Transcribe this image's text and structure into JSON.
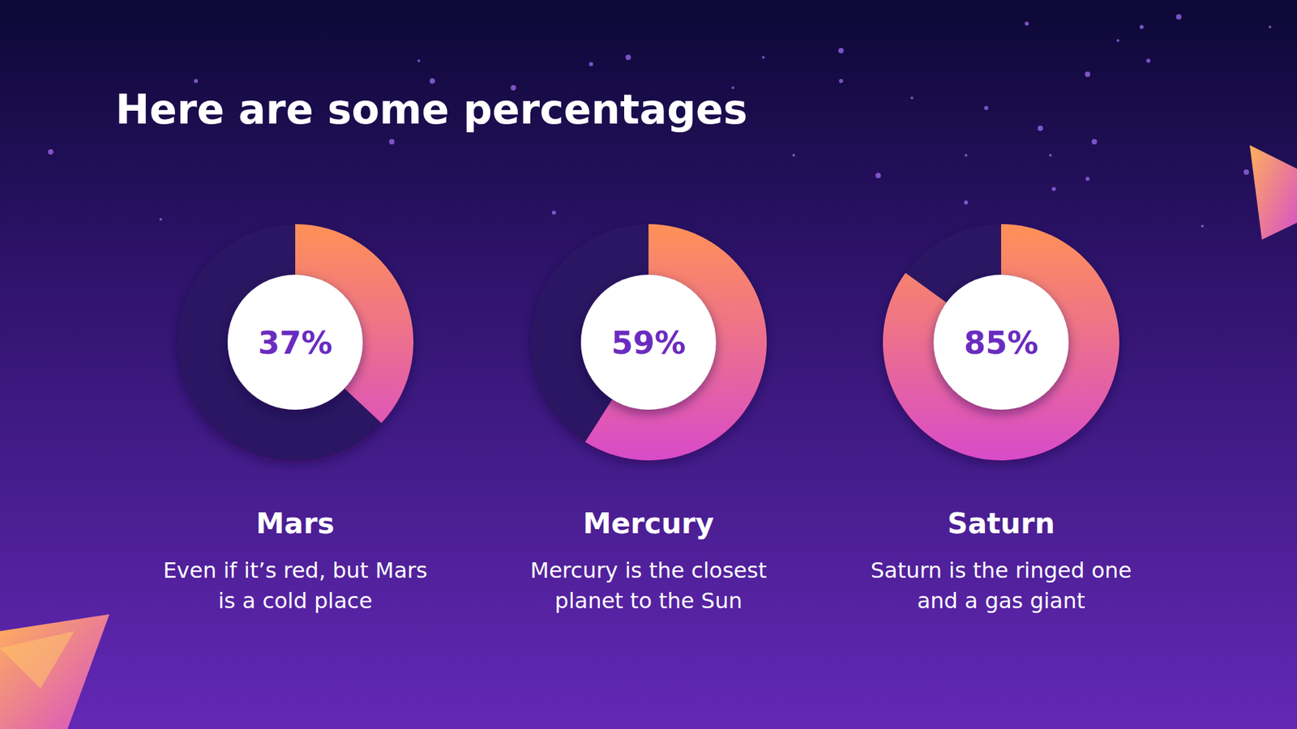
{
  "title": "Here are some percentages",
  "chart_data": [
    {
      "type": "donut",
      "title": "Mars",
      "subtitle": [
        "Even if it’s red, but Mars",
        "is a cold place"
      ],
      "values": [
        37
      ],
      "value_labels": [
        "37%"
      ],
      "data_labels": true,
      "ylim": [
        0,
        100
      ],
      "color": "#ff9157"
    },
    {
      "type": "donut",
      "title": "Mercury",
      "subtitle": [
        "Mercury is the closest",
        "planet to the Sun"
      ],
      "values": [
        59
      ],
      "value_labels": [
        "59%"
      ],
      "data_labels": true,
      "ylim": [
        0,
        100
      ],
      "color": "#ff9157"
    },
    {
      "type": "donut",
      "title": "Saturn",
      "subtitle": [
        "Saturn is the ringed one",
        "and a gas giant"
      ],
      "values": [
        85
      ],
      "value_labels": [
        "85%"
      ],
      "data_labels": true,
      "ylim": [
        0,
        100
      ],
      "color": "#ff9157"
    }
  ]
}
